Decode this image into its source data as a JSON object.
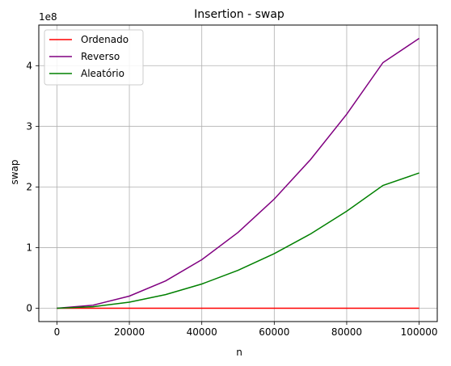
{
  "chart_data": {
    "type": "line",
    "title": "Insertion - swap",
    "xlabel": "n",
    "ylabel": "swap",
    "offset_label": "1e8",
    "x_ticks": [
      0,
      20000,
      40000,
      60000,
      80000,
      100000
    ],
    "x_tick_labels": [
      "0",
      "20000",
      "40000",
      "60000",
      "80000",
      "100000"
    ],
    "y_ticks": [
      0,
      1,
      2,
      3,
      4
    ],
    "y_tick_labels": [
      "0",
      "1",
      "2",
      "3",
      "4"
    ],
    "y_scale_factor": 100000000,
    "xlim": [
      -5000,
      105000
    ],
    "ylim": [
      -0.22,
      4.67
    ],
    "grid": true,
    "legend_position": "top-left",
    "x": [
      0,
      10000,
      20000,
      30000,
      40000,
      50000,
      60000,
      70000,
      80000,
      90000,
      100000
    ],
    "series": [
      {
        "name": "Ordenado",
        "color": "#ff0000",
        "values": [
          0,
          0,
          0,
          0,
          0,
          0,
          0,
          0,
          0,
          0,
          0
        ]
      },
      {
        "name": "Reverso",
        "color": "#800080",
        "values": [
          0,
          0.05,
          0.2,
          0.45,
          0.8,
          1.25,
          1.8,
          2.45,
          3.2,
          4.05,
          4.45
        ]
      },
      {
        "name": "Aleatório",
        "color": "#008000",
        "values": [
          0,
          0.025,
          0.1,
          0.225,
          0.4,
          0.625,
          0.9,
          1.225,
          1.6,
          2.025,
          2.23
        ]
      }
    ]
  }
}
